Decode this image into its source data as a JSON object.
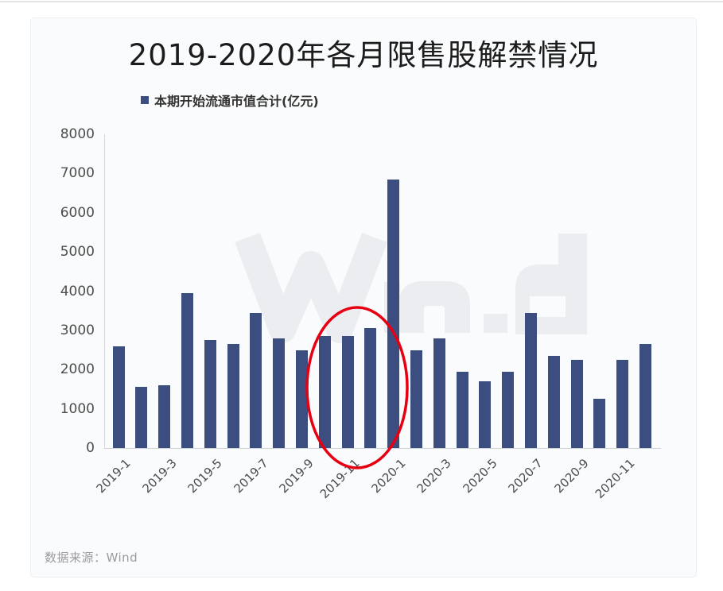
{
  "chart_data": {
    "type": "bar",
    "title": "2019-2020年各月限售股解禁情况",
    "legend": [
      "本期开始流通市值合计(亿元)"
    ],
    "categories": [
      "2019-1",
      "2019-2",
      "2019-3",
      "2019-4",
      "2019-5",
      "2019-6",
      "2019-7",
      "2019-8",
      "2019-9",
      "2019-10",
      "2019-11",
      "2019-12",
      "2020-1",
      "2020-2",
      "2020-3",
      "2020-4",
      "2020-5",
      "2020-6",
      "2020-7",
      "2020-8",
      "2020-9",
      "2020-10",
      "2020-11",
      "2020-12"
    ],
    "values": [
      2600,
      1550,
      1600,
      3950,
      2750,
      2650,
      3450,
      2800,
      2500,
      2850,
      2850,
      3050,
      6850,
      2500,
      2800,
      1950,
      1700,
      1950,
      3450,
      2350,
      2250,
      1250,
      2250,
      2650
    ],
    "x_tick_labels": [
      "2019-1",
      "2019-3",
      "2019-5",
      "2019-7",
      "2019-9",
      "2019-11",
      "2020-1",
      "2020-3",
      "2020-5",
      "2020-7",
      "2020-9",
      "2020-11"
    ],
    "y_ticks": [
      0,
      1000,
      2000,
      3000,
      4000,
      5000,
      6000,
      7000,
      8000
    ],
    "ylim": [
      0,
      8000
    ],
    "xlabel": "",
    "ylabel": "",
    "grid": false,
    "legend_position": "top-left",
    "watermark": "Wind",
    "annotation": {
      "shape": "ellipse",
      "circled_categories": [
        "2019-10",
        "2019-11",
        "2019-12"
      ],
      "color": "#e60012"
    }
  },
  "source": {
    "label": "数据来源：Wind"
  },
  "colors": {
    "bar": "#3c4d80",
    "annotation": "#e60012",
    "watermark": "#ebedf0",
    "axis_line": "#d6d8db",
    "title_text": "#1c1c1c",
    "tick_text": "#4c4c4c",
    "source_text": "#9b9ba0",
    "card_background": "#fafbfc"
  }
}
